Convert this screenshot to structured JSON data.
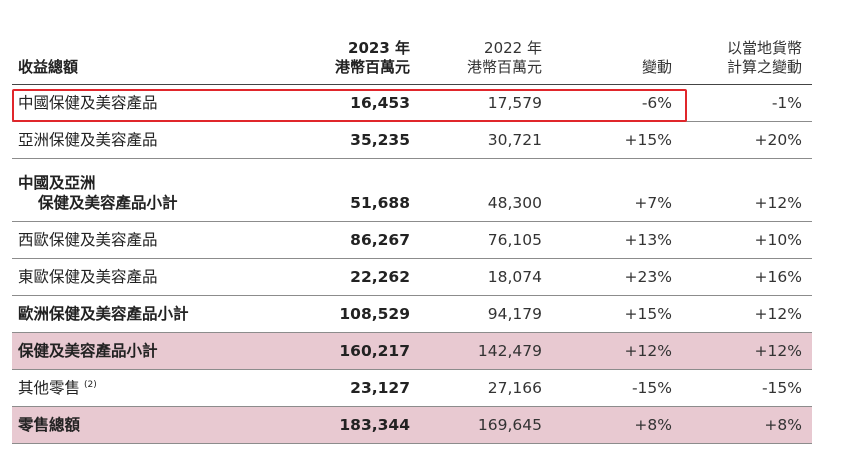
{
  "header": {
    "label": "收益總額",
    "col1": [
      "2023 年",
      "港幣百萬元"
    ],
    "col2": [
      "2022 年",
      "港幣百萬元"
    ],
    "col3": [
      "",
      "變動"
    ],
    "col4": [
      "以當地貨幣",
      "計算之變動"
    ]
  },
  "rows": [
    {
      "label": "中國保健及美容產品",
      "v2023": "16,453",
      "v2022": "17,579",
      "change": "-6%",
      "local": "-1%"
    },
    {
      "label": "亞洲保健及美容產品",
      "v2023": "35,235",
      "v2022": "30,721",
      "change": "+15%",
      "local": "+20%"
    },
    {
      "label_line1": "中國及亞洲",
      "label_line2": "保健及美容產品小計",
      "v2023": "51,688",
      "v2022": "48,300",
      "change": "+7%",
      "local": "+12%"
    },
    {
      "label": "西歐保健及美容產品",
      "v2023": "86,267",
      "v2022": "76,105",
      "change": "+13%",
      "local": "+10%"
    },
    {
      "label": "東歐保健及美容產品",
      "v2023": "22,262",
      "v2022": "18,074",
      "change": "+23%",
      "local": "+16%"
    },
    {
      "label": "歐洲保健及美容產品小計",
      "v2023": "108,529",
      "v2022": "94,179",
      "change": "+15%",
      "local": "+12%"
    },
    {
      "label": "保健及美容產品小計",
      "v2023": "160,217",
      "v2022": "142,479",
      "change": "+12%",
      "local": "+12%"
    },
    {
      "label": "其他零售",
      "note": "(2)",
      "v2023": "23,127",
      "v2022": "27,166",
      "change": "-15%",
      "local": "-15%"
    },
    {
      "label": "零售總額",
      "v2023": "183,344",
      "v2022": "169,645",
      "change": "+8%",
      "local": "+8%"
    }
  ],
  "colors": {
    "shade": "#e8c9d1",
    "highlight": "#e0262b"
  }
}
